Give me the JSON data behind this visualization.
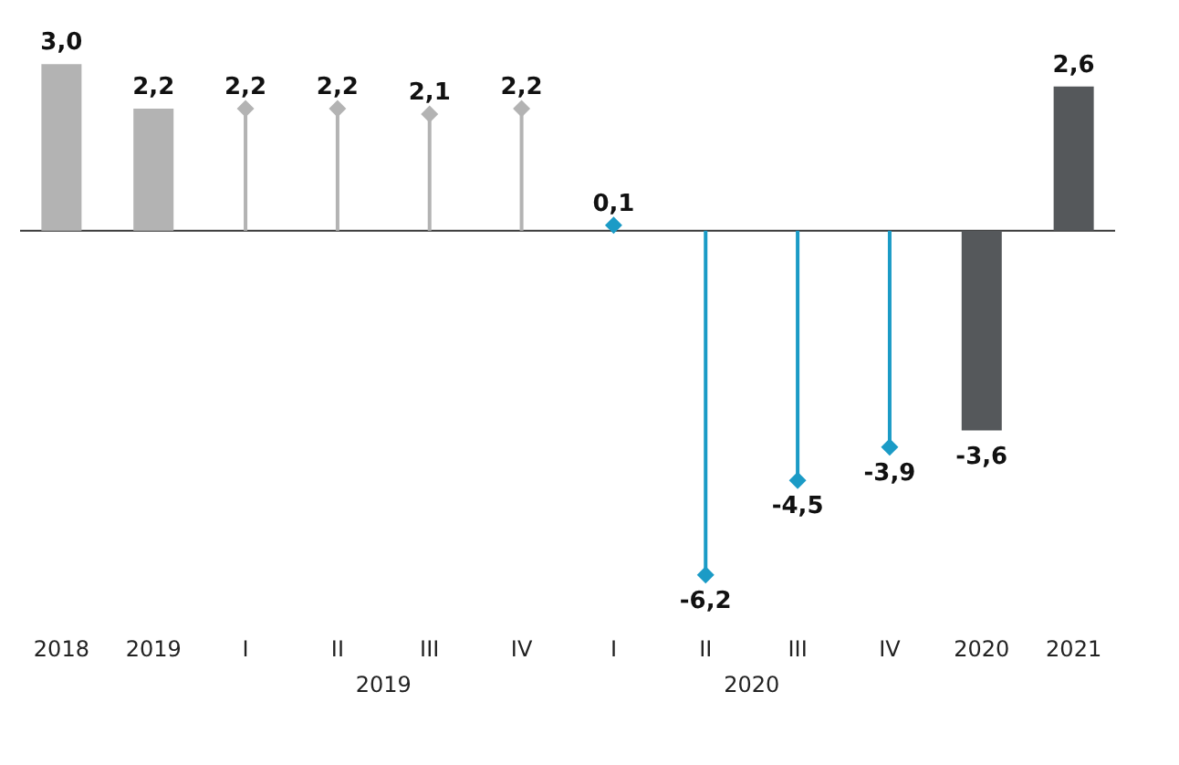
{
  "chart_data": {
    "type": "bar",
    "categories": [
      "2018",
      "2019",
      "I",
      "II",
      "III",
      "IV",
      "I",
      "II",
      "III",
      "IV",
      "2020",
      "2021"
    ],
    "series": [
      {
        "colors": [
          "#b3b3b3",
          "#b3b3b3",
          null,
          null,
          null,
          null,
          null,
          null,
          null,
          null,
          "#55585b",
          "#55585b"
        ],
        "values": [
          3.0,
          2.2,
          null,
          null,
          null,
          null,
          null,
          null,
          null,
          null,
          -3.6,
          2.6
        ],
        "value_labels": [
          "3,0",
          "2,2",
          null,
          null,
          null,
          null,
          null,
          null,
          null,
          null,
          "-3,6",
          "2,6"
        ]
      },
      {
        "type": "lollipop",
        "colors": [
          null,
          null,
          "#b3b3b3",
          "#b3b3b3",
          "#b3b3b3",
          "#b3b3b3",
          "#1b9bc6",
          "#1b9bc6",
          "#1b9bc6",
          "#1b9bc6",
          null,
          null
        ],
        "values": [
          null,
          null,
          2.2,
          2.2,
          2.1,
          2.2,
          0.1,
          -6.2,
          -4.5,
          -3.9,
          null,
          null
        ],
        "value_labels": [
          null,
          null,
          "2,2",
          "2,2",
          "2,1",
          "2,2",
          "0,1",
          "-6,2",
          "-4,5",
          "-3,9",
          null,
          null
        ],
        "marker": "diamond"
      }
    ],
    "annotations": [
      "2019",
      "2020"
    ]
  }
}
